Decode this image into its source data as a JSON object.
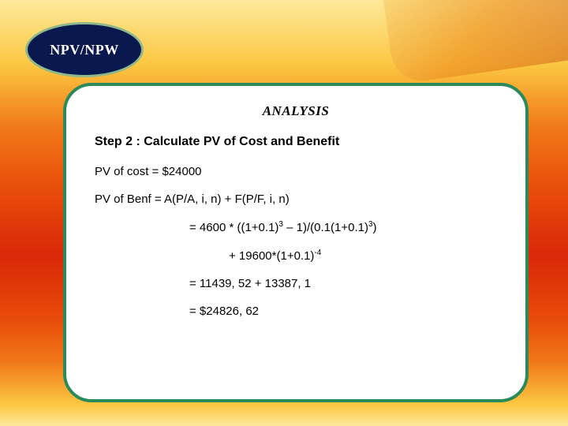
{
  "badge": {
    "label": "NPV/NPW"
  },
  "card": {
    "title": "ANALYSIS",
    "step": "Step 2 : Calculate  PV of Cost and Benefit",
    "line1": "PV of cost  = $24000",
    "line2": "PV of Benf = A(P/A, i, n)  +  F(P/F, i, n)",
    "line3_pre": "= 4600 * ((1+0.1)",
    "line3_exp1": "3",
    "line3_mid": " – 1)/(0.1(1+0.1)",
    "line3_exp2": "3",
    "line3_post": ")",
    "line4_pre": "+ 19600*(1+0.1)",
    "line4_exp": "-4",
    "line5": "= 11439, 52 + 13387, 1",
    "line6": "= $24826, 62"
  },
  "colors": {
    "badge_bg": "#0a1850",
    "badge_border": "#8fb88a",
    "card_border": "#2b8a5a",
    "card_bg": "#ffffff"
  }
}
